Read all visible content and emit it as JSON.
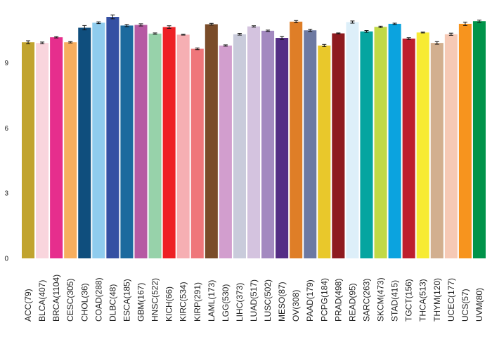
{
  "chart_data": {
    "type": "bar",
    "title": "",
    "xlabel": "",
    "ylabel": "",
    "ylim": [
      0,
      11.25
    ],
    "yticks": [
      0,
      3,
      6,
      9
    ],
    "grid": false,
    "categories": [
      "ACC(79)",
      "BLCA(407)",
      "BRCA(1104)",
      "CESC(305)",
      "CHOL(36)",
      "COAD(288)",
      "DLBC(48)",
      "ESCA(185)",
      "GBM(167)",
      "HNSC(522)",
      "KICH(66)",
      "KIRC(534)",
      "KIRP(291)",
      "LAML(173)",
      "LGG(530)",
      "LIHC(373)",
      "LUAD(517)",
      "LUSC(502)",
      "MESO(87)",
      "OV(308)",
      "PAAD(179)",
      "PCPG(184)",
      "PRAD(498)",
      "READ(95)",
      "SARC(263)",
      "SKCM(473)",
      "STAD(415)",
      "TGCT(156)",
      "THCA(513)",
      "THYM(120)",
      "UCEC(177)",
      "UCS(57)",
      "UVM(80)"
    ],
    "values": [
      9.95,
      9.92,
      10.18,
      9.95,
      10.62,
      10.85,
      11.12,
      10.72,
      10.75,
      10.35,
      10.65,
      10.3,
      9.65,
      10.78,
      9.8,
      10.32,
      10.68,
      10.48,
      10.15,
      10.9,
      10.5,
      9.8,
      10.36,
      10.88,
      10.45,
      10.66,
      10.8,
      10.12,
      10.4,
      9.92,
      10.32,
      10.8,
      10.92
    ],
    "errors": [
      0.07,
      0.04,
      0.03,
      0.03,
      0.1,
      0.04,
      0.09,
      0.05,
      0.05,
      0.03,
      0.06,
      0.02,
      0.04,
      0.04,
      0.03,
      0.04,
      0.03,
      0.03,
      0.07,
      0.05,
      0.05,
      0.05,
      0.02,
      0.05,
      0.04,
      0.03,
      0.03,
      0.04,
      0.02,
      0.06,
      0.05,
      0.08,
      0.05
    ],
    "colors": [
      "#C1A42F",
      "#F9D5DD",
      "#E62E8D",
      "#F7AE5E",
      "#0F4E7D",
      "#8FCCEE",
      "#3550A3",
      "#1B6A9E",
      "#B65AA3",
      "#97D2AA",
      "#EE2025",
      "#F6AFB3",
      "#EF767A",
      "#7A4C29",
      "#D29ECE",
      "#C9CBDB",
      "#D4C3DF",
      "#A389C0",
      "#542D85",
      "#DF7E27",
      "#6D79A2",
      "#E9C82B",
      "#8E1B1F",
      "#DDEFF9",
      "#05A5A0",
      "#C1D946",
      "#0BA3DF",
      "#BE1E2D",
      "#F7EB32",
      "#D2AF8F",
      "#F6C9B5",
      "#F7941E",
      "#00944A"
    ]
  }
}
